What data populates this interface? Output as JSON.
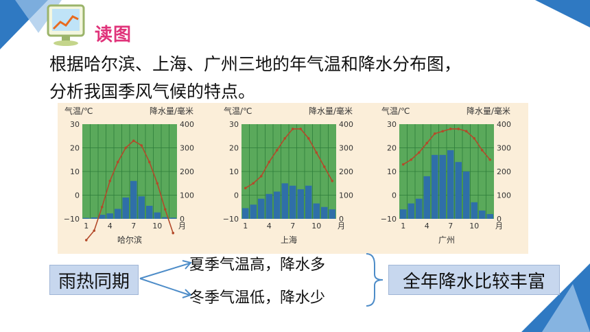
{
  "slide": {
    "badge_title": "读图",
    "intro_line1": "根据哈尔滨、上海、广州三地的年气温和降水分布图，",
    "intro_line2": "分析我国季风气候的特点。"
  },
  "chart_data": [
    {
      "type": "bar+line",
      "title": "哈尔滨",
      "left_axis_label": "气温/℃",
      "right_axis_label": "降水量/毫米",
      "x_label": "月",
      "left_ticks": [
        "30",
        "20",
        "10",
        "0",
        "−10"
      ],
      "right_ticks": [
        "400",
        "300",
        "200",
        "100",
        "0"
      ],
      "x_ticks": [
        "1",
        "4",
        "7",
        "10"
      ],
      "temperature": [
        -19,
        -15,
        -5,
        6,
        14,
        20,
        23,
        21,
        14,
        5,
        -6,
        -16
      ],
      "precipitation": [
        4,
        6,
        17,
        23,
        42,
        90,
        160,
        95,
        55,
        27,
        7,
        5
      ]
    },
    {
      "type": "bar+line",
      "title": "上海",
      "left_axis_label": "气温/℃",
      "right_axis_label": "降水量/毫米",
      "x_label": "月",
      "left_ticks": [
        "30",
        "20",
        "10",
        "0",
        "−10"
      ],
      "right_ticks": [
        "400",
        "300",
        "200",
        "100",
        "0"
      ],
      "x_ticks": [
        "1",
        "4",
        "7",
        "10"
      ],
      "temperature": [
        3,
        5,
        8,
        14,
        19,
        24,
        28,
        28,
        24,
        18,
        12,
        6
      ],
      "precipitation": [
        45,
        60,
        85,
        105,
        115,
        150,
        140,
        125,
        140,
        65,
        50,
        40
      ]
    },
    {
      "type": "bar+line",
      "title": "广州",
      "left_axis_label": "气温/℃",
      "right_axis_label": "降水量/毫米",
      "x_label": "月",
      "left_ticks": [
        "30",
        "20",
        "10",
        "0",
        "−10"
      ],
      "right_ticks": [
        "400",
        "300",
        "200",
        "100",
        "0"
      ],
      "x_ticks": [
        "1",
        "4",
        "7",
        "10"
      ],
      "temperature": [
        13,
        15,
        18,
        22,
        26,
        27,
        28,
        28,
        27,
        24,
        19,
        15
      ],
      "precipitation": [
        40,
        65,
        85,
        180,
        270,
        270,
        290,
        240,
        200,
        70,
        35,
        20
      ]
    }
  ],
  "summary": {
    "left_box": "雨热同期",
    "summer": "夏季气温高，降水多",
    "winter": "冬季气温低，降水少",
    "right_box": "全年降水比较丰富"
  },
  "colors": {
    "plot_bg": "#5aa95b",
    "bar": "#2f6fa8",
    "line": "#b34a2a",
    "accent": "#2f79c2"
  }
}
